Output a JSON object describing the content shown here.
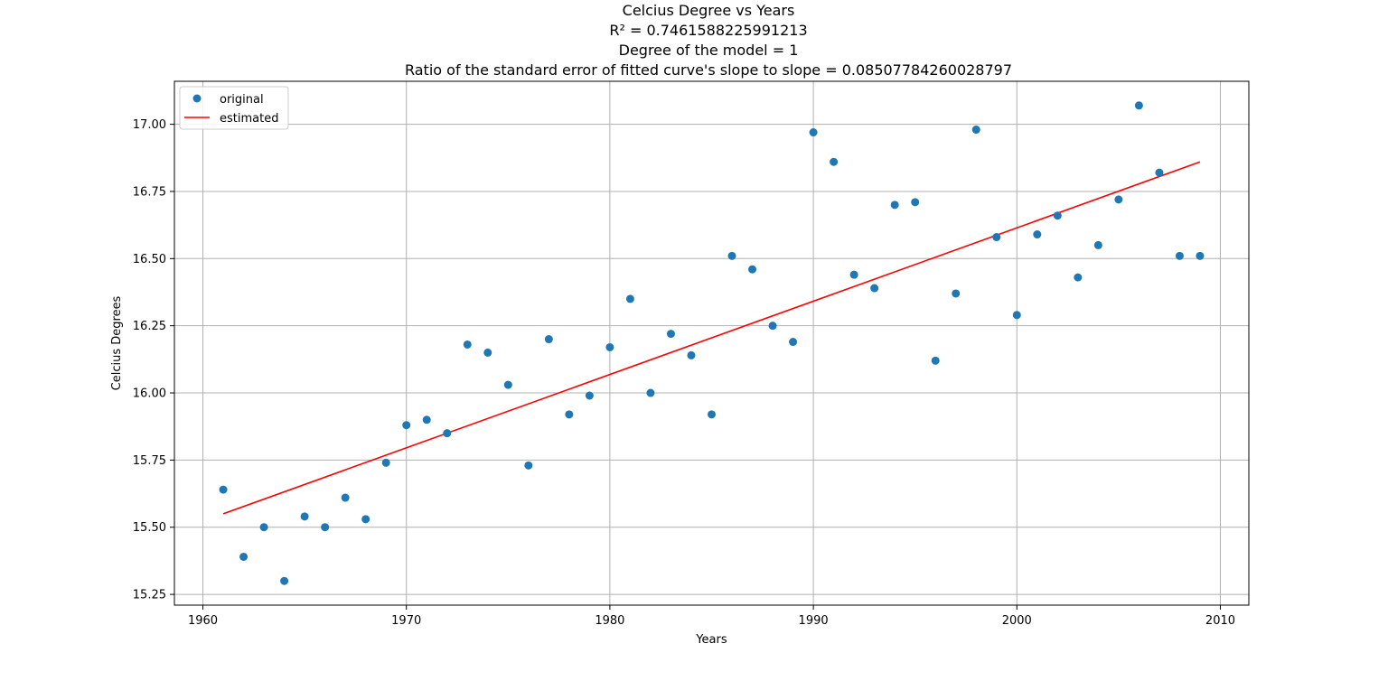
{
  "chart_data": {
    "type": "scatter",
    "title_lines": [
      "Celcius Degree vs Years",
      "R² = 0.7461588225991213",
      "Degree of the model = 1",
      "Ratio of the standard error of fitted curve's slope to slope = 0.08507784260028797"
    ],
    "xlabel": "Years",
    "ylabel": "Celcius Degrees",
    "xlim": [
      1958.6,
      2011.4
    ],
    "ylim": [
      15.21,
      17.16
    ],
    "xticks": [
      1960,
      1970,
      1980,
      1990,
      2000,
      2010
    ],
    "yticks": [
      15.25,
      15.5,
      15.75,
      16.0,
      16.25,
      16.5,
      16.75,
      17.0
    ],
    "ytick_labels": [
      "15.25",
      "15.50",
      "15.75",
      "16.00",
      "16.25",
      "16.50",
      "16.75",
      "17.00"
    ],
    "grid": true,
    "legend": {
      "placement": "upper-left",
      "entries": [
        "original",
        "estimated"
      ]
    },
    "series": [
      {
        "name": "original",
        "kind": "points",
        "color": "#1f77b4",
        "x": [
          1961,
          1962,
          1963,
          1964,
          1965,
          1966,
          1967,
          1968,
          1969,
          1970,
          1971,
          1972,
          1973,
          1974,
          1975,
          1976,
          1977,
          1978,
          1979,
          1980,
          1981,
          1982,
          1983,
          1984,
          1985,
          1986,
          1987,
          1988,
          1989,
          1990,
          1991,
          1992,
          1993,
          1994,
          1995,
          1996,
          1997,
          1998,
          1999,
          2000,
          2001,
          2002,
          2003,
          2004,
          2005,
          2006,
          2007,
          2008,
          2009
        ],
        "y": [
          15.64,
          15.39,
          15.5,
          15.3,
          15.54,
          15.5,
          15.61,
          15.53,
          15.74,
          15.88,
          15.9,
          15.85,
          16.18,
          16.15,
          16.03,
          15.73,
          16.2,
          15.92,
          15.99,
          16.17,
          16.35,
          16.0,
          16.22,
          16.14,
          15.92,
          16.51,
          16.46,
          16.25,
          16.19,
          16.97,
          16.86,
          16.44,
          16.39,
          16.7,
          16.71,
          16.12,
          16.37,
          16.98,
          16.58,
          16.29,
          16.59,
          16.66,
          16.43,
          16.55,
          16.72,
          17.07,
          16.82,
          16.51,
          16.51
        ]
      },
      {
        "name": "estimated",
        "kind": "line",
        "color": "#ff0000",
        "x": [
          1961,
          2009
        ],
        "y": [
          15.55,
          16.86
        ]
      }
    ]
  }
}
